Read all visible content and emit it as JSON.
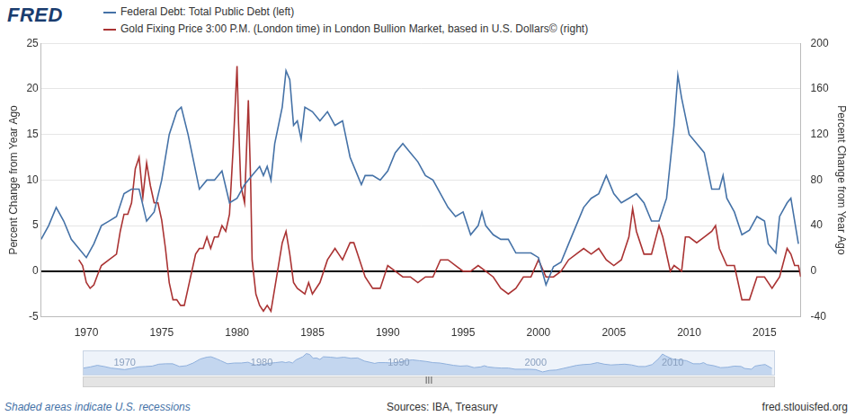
{
  "header": {
    "logo": "FRED"
  },
  "chart_data": {
    "type": "line",
    "ylabel": "Percent Change from Year Ago",
    "y2label": "Percent Change from Year Ago",
    "xlim": [
      1967,
      2017.4
    ],
    "xticks": [
      1970,
      1975,
      1980,
      1985,
      1990,
      1995,
      2000,
      2005,
      2010,
      2015
    ],
    "ylim": [
      -5,
      25
    ],
    "yticks": [
      -5,
      0,
      5,
      10,
      15,
      20,
      25
    ],
    "y2lim": [
      -40,
      200
    ],
    "y2ticks": [
      -40,
      0,
      40,
      80,
      120,
      160,
      200
    ],
    "grid": true,
    "legend": "top left",
    "series": [
      {
        "name": "Federal Debt: Total Public Debt (left)",
        "color": "#4572a7",
        "axis": "y",
        "x": [
          1967.0,
          1967.5,
          1968.0,
          1968.5,
          1969.0,
          1969.5,
          1970.0,
          1970.5,
          1971.0,
          1971.5,
          1972.0,
          1972.5,
          1973.0,
          1973.5,
          1974.0,
          1974.5,
          1975.0,
          1975.5,
          1976.0,
          1976.3,
          1976.75,
          1977.0,
          1977.5,
          1978.0,
          1978.5,
          1979.0,
          1979.5,
          1980.0,
          1980.5,
          1981.0,
          1981.5,
          1981.75,
          1982.0,
          1982.25,
          1982.5,
          1983.0,
          1983.25,
          1983.5,
          1983.75,
          1984.0,
          1984.25,
          1984.5,
          1985.0,
          1985.5,
          1986.0,
          1986.5,
          1987.0,
          1987.5,
          1988.0,
          1988.25,
          1988.5,
          1989.0,
          1989.5,
          1990.0,
          1990.5,
          1991.0,
          1991.5,
          1992.0,
          1992.5,
          1993.0,
          1993.5,
          1994.0,
          1994.5,
          1995.0,
          1995.5,
          1996.0,
          1996.25,
          1996.5,
          1997.0,
          1997.5,
          1998.0,
          1998.5,
          1999.0,
          1999.5,
          2000.0,
          2000.5,
          2001.0,
          2001.5,
          2002.0,
          2002.5,
          2003.0,
          2003.5,
          2004.0,
          2004.5,
          2005.0,
          2005.5,
          2006.0,
          2006.5,
          2007.0,
          2007.5,
          2008.0,
          2008.5,
          2009.0,
          2009.25,
          2009.5,
          2010.0,
          2010.5,
          2011.0,
          2011.5,
          2012.0,
          2012.25,
          2012.5,
          2013.0,
          2013.5,
          2014.0,
          2014.5,
          2015.0,
          2015.25,
          2015.75,
          2016.0,
          2016.5,
          2016.75,
          2017.25
        ],
        "values": [
          3.5,
          5,
          7,
          5.5,
          3.5,
          2.5,
          1.5,
          3,
          5,
          5.5,
          6,
          8.5,
          9,
          9,
          5.5,
          6.5,
          10,
          15,
          17.5,
          18,
          15,
          13,
          9,
          10,
          10,
          11,
          7.5,
          8,
          9.5,
          10.5,
          11.5,
          10.5,
          11.5,
          10,
          14,
          18,
          22,
          21,
          16,
          16.5,
          14.5,
          18,
          17.5,
          16.5,
          17.5,
          16,
          16.5,
          12.5,
          10.5,
          9.5,
          10.5,
          10.5,
          10,
          11,
          13,
          14,
          13,
          12,
          10.5,
          10,
          8.5,
          7,
          6,
          6.5,
          4,
          5,
          6.5,
          5,
          4,
          3.5,
          3.5,
          2,
          2,
          2,
          1.5,
          -1.5,
          0.5,
          1,
          3,
          5,
          7,
          8,
          8.5,
          10.5,
          8.5,
          7.5,
          8,
          8.5,
          7.5,
          5.5,
          5.5,
          8,
          16,
          21.5,
          19,
          15,
          14,
          13,
          9,
          9,
          10.5,
          8,
          6.5,
          4,
          4.5,
          6,
          5.5,
          3,
          2,
          6,
          7.5,
          8,
          3
        ]
      },
      {
        "name": "Gold Fixing Price 3:00 P.M. (London time) in London Bullion Market, based in U.S. Dollars© (right)",
        "color": "#aa3333",
        "axis": "y2",
        "x": [
          1969.5,
          1969.75,
          1970.0,
          1970.25,
          1970.5,
          1970.75,
          1971.0,
          1971.5,
          1972.0,
          1972.25,
          1972.5,
          1972.75,
          1973.0,
          1973.25,
          1973.5,
          1973.75,
          1974.0,
          1974.25,
          1974.5,
          1974.75,
          1975.0,
          1975.25,
          1975.5,
          1975.75,
          1976.0,
          1976.25,
          1976.5,
          1976.75,
          1977.0,
          1977.25,
          1977.5,
          1977.75,
          1978.0,
          1978.25,
          1978.5,
          1978.75,
          1979.0,
          1979.25,
          1979.5,
          1979.75,
          1980.0,
          1980.1,
          1980.25,
          1980.5,
          1980.75,
          1980.9,
          1981.0,
          1981.25,
          1981.5,
          1981.75,
          1982.0,
          1982.25,
          1982.5,
          1982.75,
          1983.0,
          1983.25,
          1983.5,
          1983.75,
          1984.0,
          1984.5,
          1984.75,
          1985.0,
          1985.5,
          1986.0,
          1986.5,
          1986.75,
          1987.0,
          1987.5,
          1987.75,
          1988.0,
          1988.5,
          1989.0,
          1989.5,
          1990.0,
          1990.5,
          1991.0,
          1991.5,
          1992.0,
          1992.5,
          1993.0,
          1993.5,
          1994.0,
          1994.5,
          1995.0,
          1995.5,
          1996.0,
          1996.5,
          1997.0,
          1997.5,
          1998.0,
          1998.5,
          1999.0,
          1999.5,
          2000.0,
          2000.5,
          2001.0,
          2001.5,
          2002.0,
          2002.5,
          2003.0,
          2003.5,
          2004.0,
          2004.5,
          2005.0,
          2005.5,
          2006.0,
          2006.25,
          2006.5,
          2007.0,
          2007.5,
          2008.0,
          2008.25,
          2008.75,
          2009.0,
          2009.5,
          2009.75,
          2010.0,
          2010.5,
          2011.0,
          2011.5,
          2011.75,
          2012.0,
          2012.5,
          2013.0,
          2013.5,
          2013.75,
          2014.0,
          2014.5,
          2014.75,
          2015.0,
          2015.5,
          2015.75,
          2016.0,
          2016.5,
          2016.75,
          2017.0,
          2017.25,
          2017.4
        ],
        "values": [
          10,
          5,
          -10,
          -15,
          -12,
          -3,
          5,
          10,
          15,
          35,
          50,
          50,
          60,
          90,
          100,
          65,
          95,
          75,
          60,
          60,
          45,
          20,
          -10,
          -25,
          -25,
          -30,
          -30,
          -15,
          0,
          15,
          20,
          20,
          30,
          20,
          30,
          30,
          40,
          35,
          50,
          110,
          180,
          130,
          75,
          60,
          150,
          80,
          10,
          -20,
          -30,
          -35,
          -30,
          -35,
          -15,
          5,
          25,
          35,
          15,
          -10,
          -15,
          -20,
          -10,
          -20,
          -10,
          10,
          20,
          15,
          10,
          25,
          25,
          15,
          -5,
          -15,
          -15,
          5,
          0,
          -5,
          -5,
          -10,
          -5,
          -5,
          10,
          10,
          5,
          0,
          0,
          5,
          0,
          -5,
          -15,
          -20,
          -15,
          -5,
          -5,
          10,
          -5,
          -5,
          0,
          10,
          15,
          20,
          15,
          20,
          10,
          5,
          10,
          30,
          55,
          35,
          15,
          15,
          40,
          30,
          0,
          5,
          0,
          30,
          30,
          25,
          30,
          35,
          40,
          20,
          5,
          5,
          -25,
          -25,
          -25,
          -5,
          -5,
          -5,
          -15,
          -10,
          -5,
          20,
          15,
          5,
          5,
          -5
        ]
      }
    ]
  },
  "navigator": {
    "xticks": [
      1970,
      1980,
      1990,
      2000,
      2010
    ],
    "grip": "III"
  },
  "footer": {
    "note": "Shaded areas indicate U.S. recessions",
    "source": "Sources: IBA, Treasury",
    "url": "fred.stlouisfed.org"
  }
}
